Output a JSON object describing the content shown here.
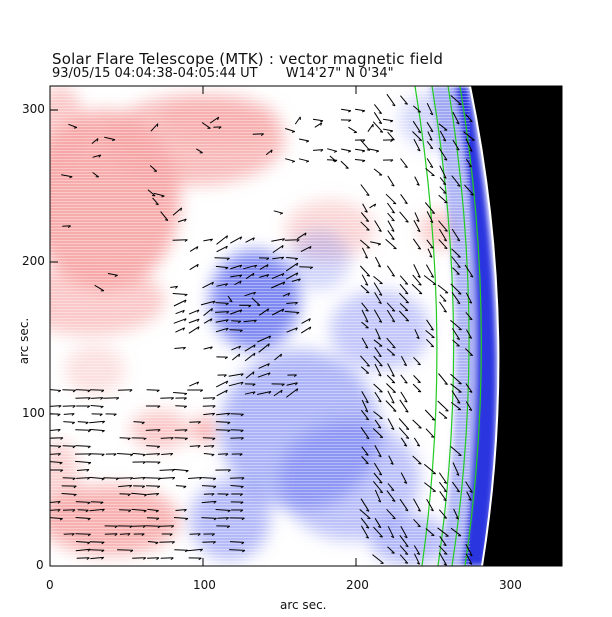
{
  "figure": {
    "title": "Solar Flare Telescope (MTK) : vector magnetic field",
    "subtitle_date": "93/05/15  04:04:38-04:05:44 UT",
    "subtitle_position": "W14'27\"  N 0'34\"",
    "xaxis": {
      "label": "arc sec.",
      "ticks": [
        "0",
        "100",
        "200",
        "300"
      ],
      "range": [
        0,
        335
      ]
    },
    "yaxis": {
      "label": "arc sec.",
      "ticks": [
        "0",
        "100",
        "200",
        "300"
      ],
      "range": [
        0,
        315
      ]
    },
    "colors": {
      "positive_polarity": "#f4a0a0",
      "negative_polarity": "#5e6bf0",
      "background": "#ffffff",
      "limb_blue": "#1111dd",
      "off_disk": "#000000",
      "contour": "#22cc22",
      "vectors": "#000000"
    }
  }
}
